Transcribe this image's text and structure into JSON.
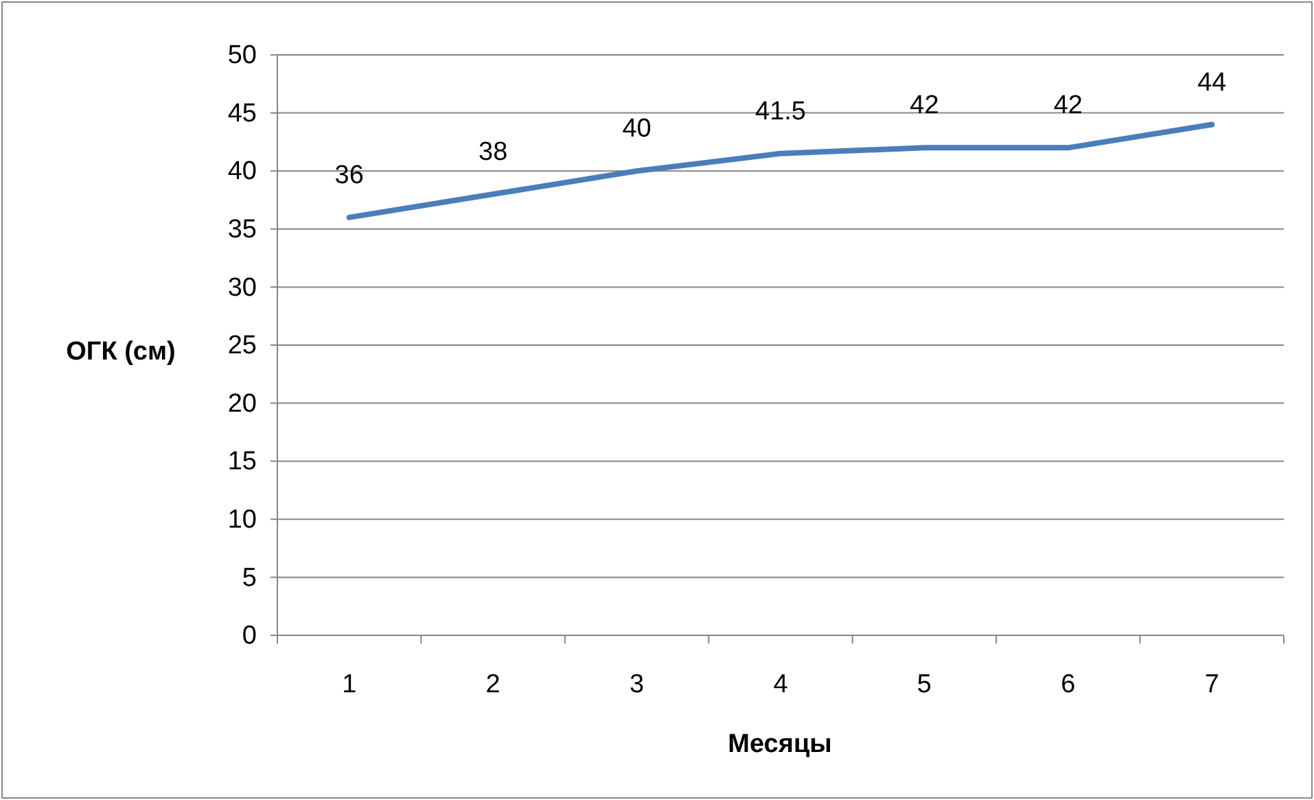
{
  "chart_data": {
    "type": "line",
    "xlabel": "Месяцы",
    "ylabel": "ОГК (см)",
    "categories": [
      "1",
      "2",
      "3",
      "4",
      "5",
      "6",
      "7"
    ],
    "series": [
      {
        "color": "#4a7ebb",
        "values": [
          36,
          38,
          40,
          41.5,
          42,
          42,
          44
        ]
      }
    ],
    "ylim": [
      0,
      50
    ],
    "yticks": [
      0,
      5,
      10,
      15,
      20,
      25,
      30,
      35,
      40,
      45,
      50
    ],
    "grid": "y",
    "data_labels": true,
    "marker": "none",
    "line_style": "solid"
  }
}
